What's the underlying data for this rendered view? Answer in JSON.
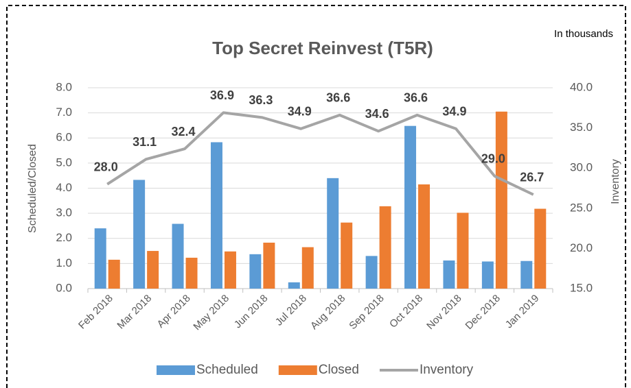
{
  "chart_data": {
    "type": "bar_line",
    "title": "Top Secret Reinvest (T5R)",
    "annotation": "In thousands",
    "ylabel": "Scheduled/Closed",
    "y2label": "Inventory",
    "categories": [
      "Feb 2018",
      "Mar 2018",
      "Apr 2018",
      "May 2018",
      "Jun 2018",
      "Jul 2018",
      "Aug 2018",
      "Sep 2018",
      "Oct 2018",
      "Nov 2018",
      "Dec 2018",
      "Jan 2019"
    ],
    "series": [
      {
        "name": "Scheduled",
        "type": "bar",
        "color": "#5b9bd5",
        "values": [
          2.4,
          4.33,
          2.58,
          5.83,
          1.37,
          0.25,
          4.4,
          1.3,
          6.48,
          1.12,
          1.08,
          1.1
        ]
      },
      {
        "name": "Closed",
        "type": "bar",
        "color": "#ed7d31",
        "values": [
          1.15,
          1.5,
          1.23,
          1.48,
          1.83,
          1.65,
          2.63,
          3.28,
          4.15,
          3.02,
          7.05,
          3.18
        ]
      },
      {
        "name": "Inventory",
        "type": "line",
        "axis": "y2",
        "color": "#a5a5a5",
        "values": [
          28,
          31.1,
          32.4,
          36.9,
          36.3,
          34.9,
          36.6,
          34.6,
          36.6,
          34.9,
          29,
          26.7
        ],
        "value_labels": [
          "28.0",
          "31.1",
          "32.4",
          "36.9",
          "36.3",
          "34.9",
          "36.6",
          "34.6",
          "36.6",
          "34.9",
          "29.0",
          "26.7"
        ]
      }
    ],
    "ylim": [
      0,
      8
    ],
    "yticks": [
      {
        "value": 0,
        "label": "0.0"
      },
      {
        "value": 1,
        "label": "1.0"
      },
      {
        "value": 2,
        "label": "2.0"
      },
      {
        "value": 3,
        "label": "3.0"
      },
      {
        "value": 4,
        "label": "4.0"
      },
      {
        "value": 5,
        "label": "5.0"
      },
      {
        "value": 6,
        "label": "6.0"
      },
      {
        "value": 7,
        "label": "7.0"
      },
      {
        "value": 8,
        "label": "8.0"
      }
    ],
    "y2lim": [
      15,
      40
    ],
    "y2ticks": [
      {
        "value": 15,
        "label": "15.0"
      },
      {
        "value": 20,
        "label": "20.0"
      },
      {
        "value": 25,
        "label": "25.0"
      },
      {
        "value": 30,
        "label": "30.0"
      },
      {
        "value": 35,
        "label": "35.0"
      },
      {
        "value": 40,
        "label": "40.0"
      }
    ],
    "grid": true,
    "legend": "bottom"
  }
}
